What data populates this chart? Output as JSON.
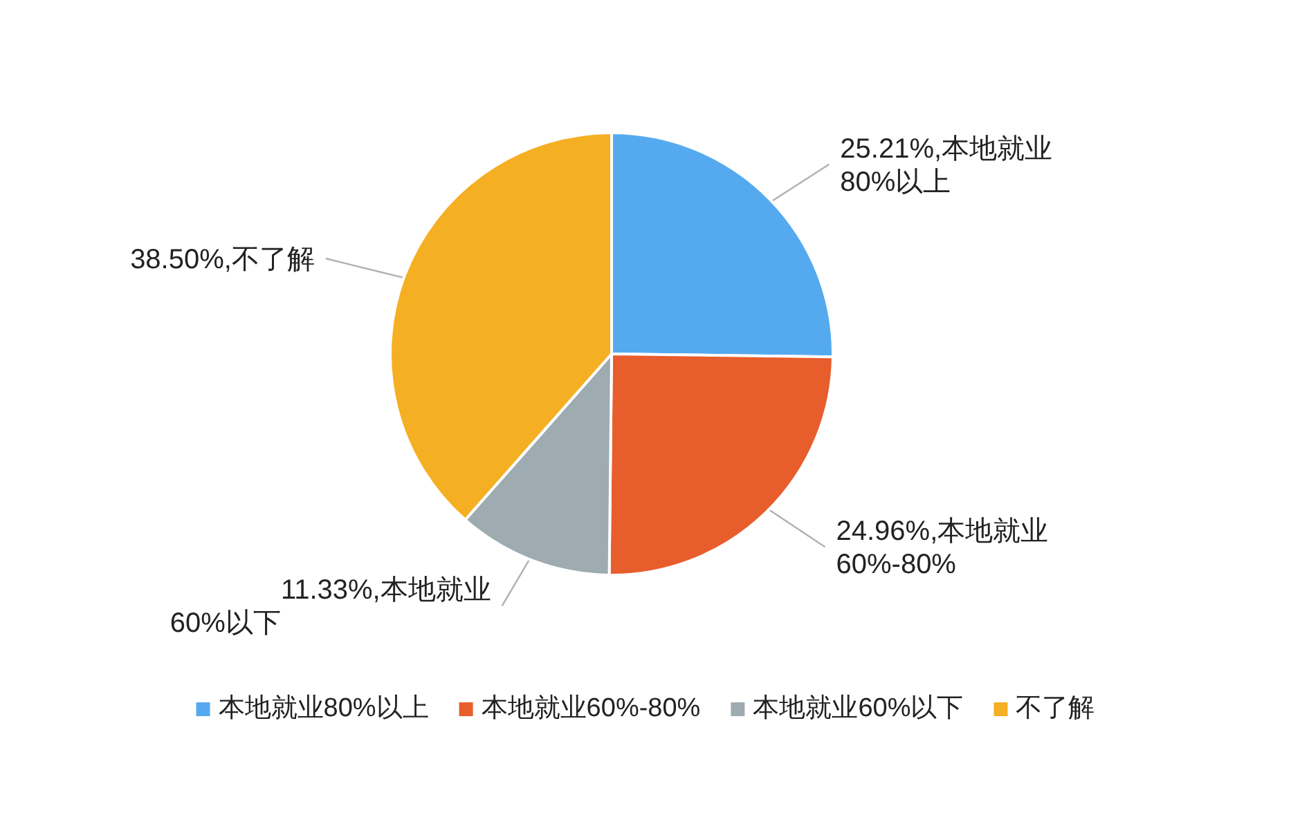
{
  "chart_data": {
    "type": "pie",
    "categories": [
      "本地就业80%以上",
      "本地就业60%-80%",
      "本地就业60%以下",
      "不了解"
    ],
    "values": [
      25.21,
      24.96,
      11.33,
      38.5
    ],
    "value_labels": [
      "25.21%,本地就业80%以上",
      "24.96%,本地就业60%-80%",
      "11.33%,本地就业60%以下",
      "38.50%,不了解"
    ],
    "colors": [
      "#55aaef",
      "#e85d2c",
      "#9eabb1",
      "#f5af22"
    ],
    "legend": "bottom"
  }
}
